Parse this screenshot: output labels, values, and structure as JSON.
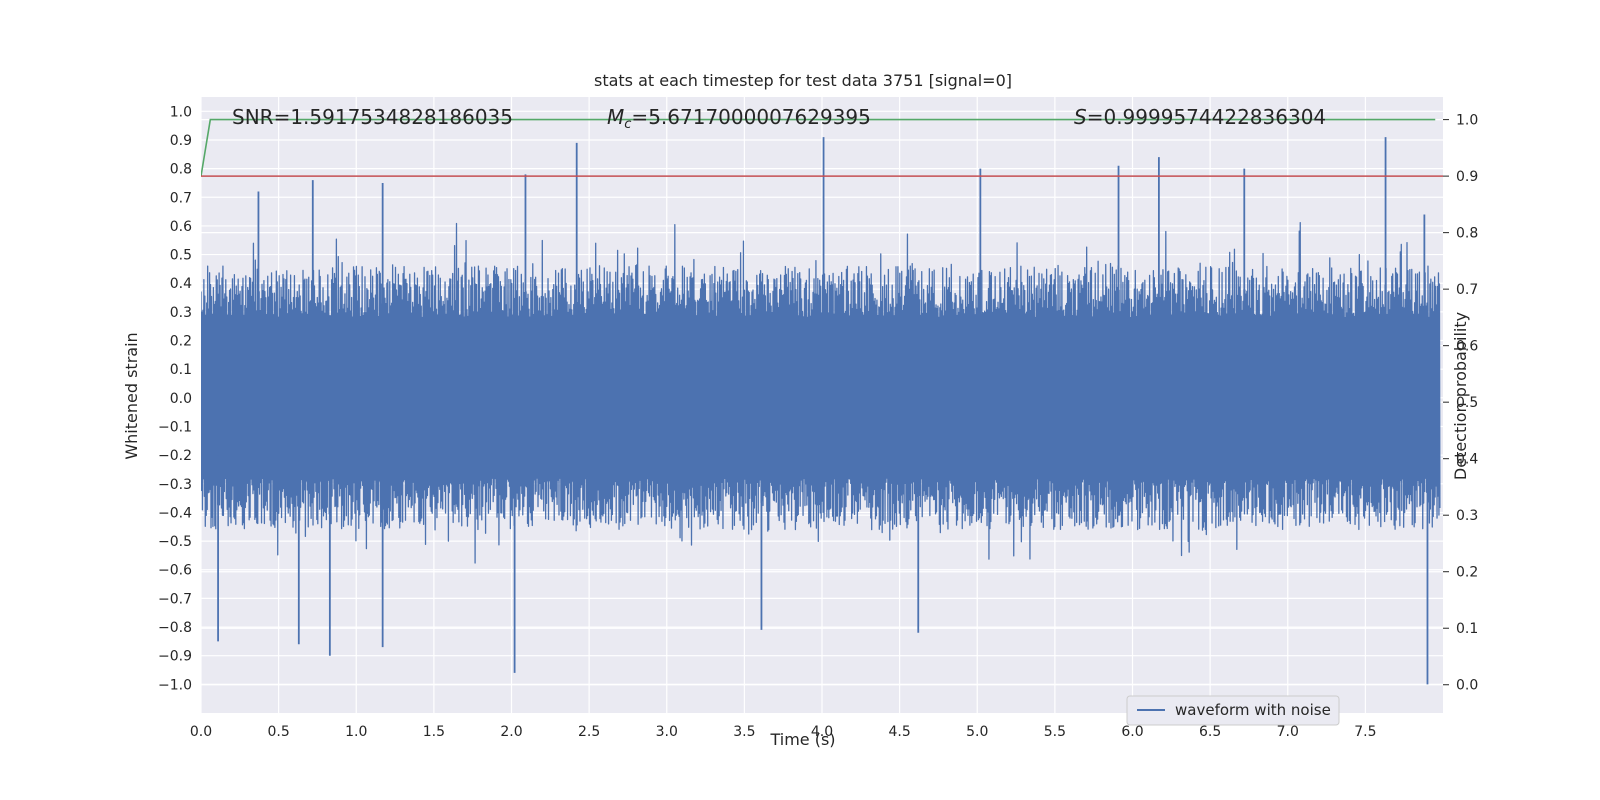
{
  "chart_data": {
    "type": "line",
    "title": "stats at each timestep for test data 3751 [signal=0]",
    "xlabel": "Time (s)",
    "ylabel": "Whitened strain",
    "y2label": "Detection probability",
    "xlim": [
      0.0,
      8.0
    ],
    "ylim": [
      -1.1,
      1.05
    ],
    "y2lim": [
      -0.05,
      1.04
    ],
    "x_ticks": [
      "0.0",
      "0.5",
      "1.0",
      "1.5",
      "2.0",
      "2.5",
      "3.0",
      "3.5",
      "4.0",
      "4.5",
      "5.0",
      "5.5",
      "6.0",
      "6.5",
      "7.0",
      "7.5"
    ],
    "y_ticks": [
      "1.0",
      "0.9",
      "0.8",
      "0.7",
      "0.6",
      "0.5",
      "0.4",
      "0.3",
      "0.2",
      "0.1",
      "0.0",
      "−0.1",
      "−0.2",
      "−0.3",
      "−0.4",
      "−0.5",
      "−0.6",
      "−0.7",
      "−0.8",
      "−0.9",
      "−1.0"
    ],
    "y2_ticks": [
      "1.0",
      "0.9",
      "0.8",
      "0.7",
      "0.6",
      "0.5",
      "0.4",
      "0.3",
      "0.2",
      "0.1",
      "0.0"
    ],
    "grid": true,
    "legend": {
      "placement": "lower-right",
      "entries": [
        "waveform with noise"
      ]
    },
    "annotations": {
      "snr": {
        "label": "SNR",
        "value": "1.5917534828186035"
      },
      "mc": {
        "label": "M",
        "subscript": "c",
        "value": "5.6717000007629395"
      },
      "s": {
        "label": "S",
        "value": "0.9999574422836304"
      }
    },
    "series": [
      {
        "name": "waveform with noise",
        "axis": "left",
        "color": "#4c72b0",
        "description": "dense noise waveform, peaks roughly within ±1.0",
        "envelope_peaks": [
          {
            "x": 0.37,
            "y": 0.72
          },
          {
            "x": 0.72,
            "y": 0.76
          },
          {
            "x": 1.17,
            "y": 0.75
          },
          {
            "x": 2.09,
            "y": 0.78
          },
          {
            "x": 2.42,
            "y": 0.89
          },
          {
            "x": 4.01,
            "y": 0.91
          },
          {
            "x": 5.02,
            "y": 0.8
          },
          {
            "x": 5.91,
            "y": 0.81
          },
          {
            "x": 6.17,
            "y": 0.84
          },
          {
            "x": 6.72,
            "y": 0.8
          },
          {
            "x": 7.63,
            "y": 0.91
          },
          {
            "x": 7.88,
            "y": 0.64
          }
        ],
        "envelope_troughs": [
          {
            "x": 0.11,
            "y": -0.85
          },
          {
            "x": 0.63,
            "y": -0.86
          },
          {
            "x": 0.83,
            "y": -0.9
          },
          {
            "x": 1.17,
            "y": -0.87
          },
          {
            "x": 2.02,
            "y": -0.96
          },
          {
            "x": 3.61,
            "y": -0.81
          },
          {
            "x": 4.62,
            "y": -0.82
          },
          {
            "x": 7.9,
            "y": -1.0
          }
        ]
      },
      {
        "name": "",
        "axis": "right",
        "color": "#55a868",
        "points": [
          [
            0.0,
            0.9
          ],
          [
            0.06,
            1.0
          ],
          [
            7.95,
            1.0
          ]
        ]
      },
      {
        "name": "",
        "axis": "right",
        "color": "#c44e52",
        "points": [
          [
            0.0,
            0.9
          ],
          [
            8.0,
            0.9
          ]
        ]
      }
    ]
  }
}
